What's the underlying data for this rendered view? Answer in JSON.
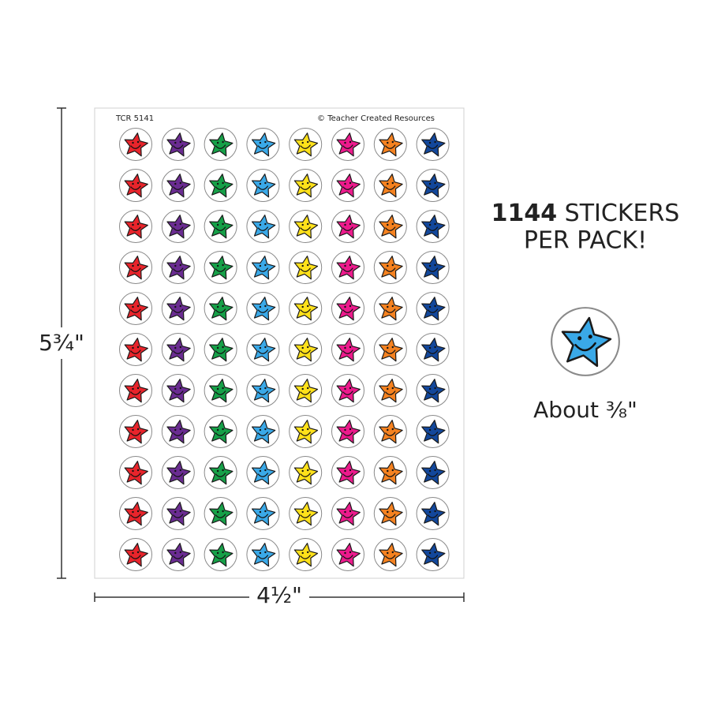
{
  "sheet": {
    "code": "TCR 5141",
    "copyright": "© Teacher Created Resources"
  },
  "dimensions": {
    "height": "5¾\"",
    "width": "4½\""
  },
  "headline": {
    "count": "1144",
    "line1": "STICKERS",
    "line2": "PER PACK!"
  },
  "size_note": "About ⅜\""
}
